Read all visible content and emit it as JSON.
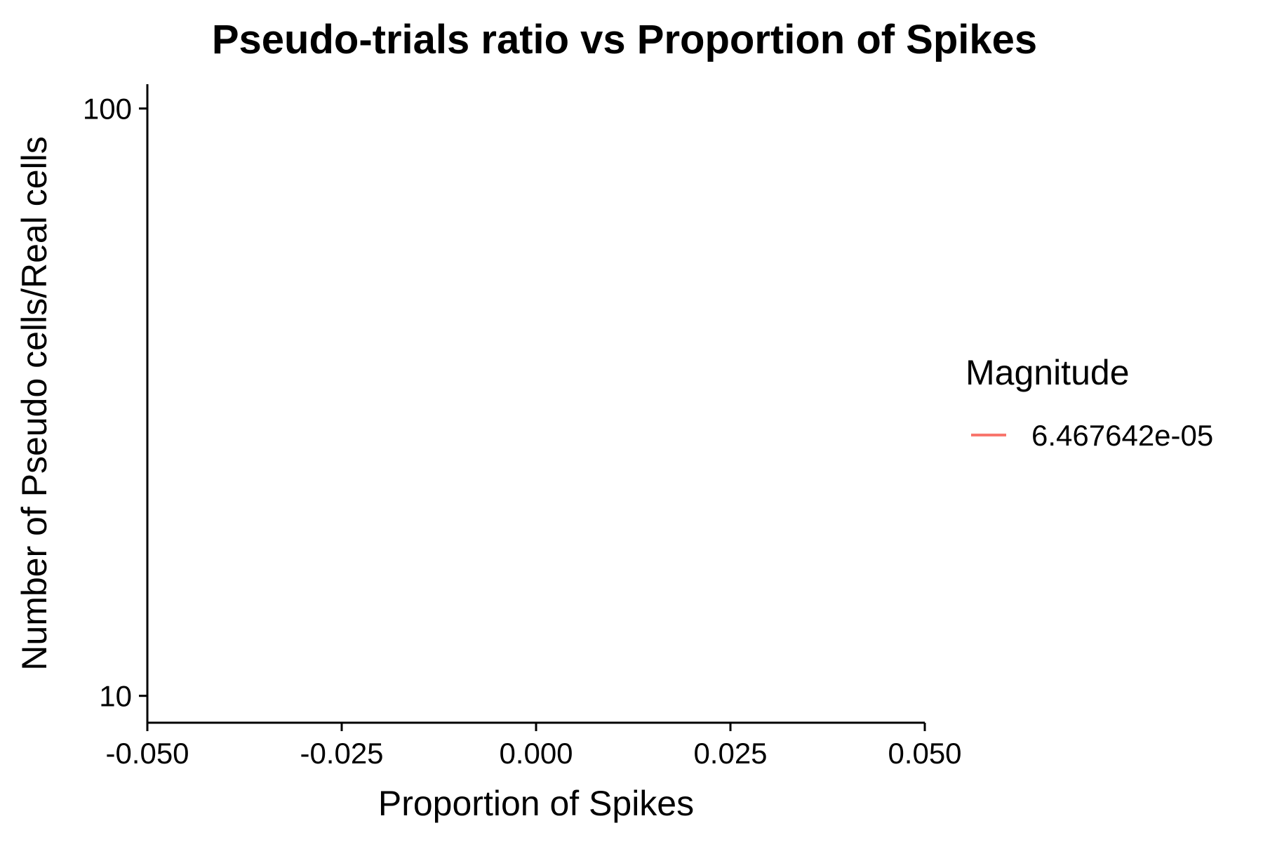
{
  "chart_data": {
    "type": "line",
    "title": "Pseudo-trials ratio vs Proportion of Spikes",
    "xlabel": "Proportion of Spikes",
    "ylabel": "Number of Pseudo cells/Real cells",
    "xlim": [
      -0.05,
      0.05
    ],
    "x_ticks": [
      -0.05,
      -0.025,
      0,
      0.025,
      0.05
    ],
    "x_tick_labels": [
      "-0.050",
      "-0.025",
      "0.000",
      "0.025",
      "0.050"
    ],
    "ylim": [
      9,
      110
    ],
    "y_scale": "log",
    "y_ticks": [
      10,
      100
    ],
    "y_tick_labels": [
      "10",
      "100"
    ],
    "grid": false,
    "legend": {
      "title": "Magnitude",
      "position": "right",
      "entries": [
        {
          "label": "6.467642e-05",
          "color": "#F8766D"
        }
      ]
    },
    "series": [
      {
        "name": "6.467642e-05",
        "color": "#F8766D",
        "x": [],
        "y": []
      }
    ]
  }
}
